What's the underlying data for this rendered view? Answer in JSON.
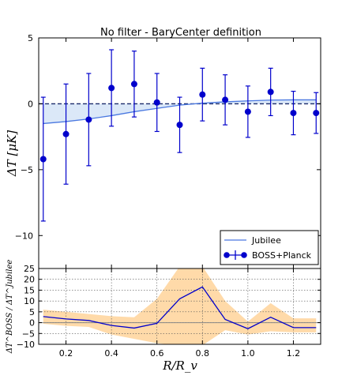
{
  "chart_data": [
    {
      "type": "line",
      "title": "No filter - BaryCenter definition",
      "ylabel": "ΔT [μK]",
      "xlabel": "",
      "xlim": [
        0.08,
        1.32
      ],
      "ylim": [
        -12.5,
        5
      ],
      "yticks": [
        5,
        0,
        -5,
        -10
      ],
      "grid": false,
      "legend": {
        "placement": "lower-right",
        "entries": [
          "Jubilee",
          "BOSS+Planck"
        ]
      },
      "series": [
        {
          "name": "Jubilee",
          "kind": "line",
          "color": "#4a78e0",
          "fill_color": "#dbe8f8",
          "x": [
            0.1,
            0.2,
            0.3,
            0.4,
            0.5,
            0.6,
            0.7,
            0.8,
            0.9,
            1.0,
            1.1,
            1.2,
            1.3
          ],
          "y": [
            -1.5,
            -1.35,
            -1.15,
            -0.9,
            -0.6,
            -0.35,
            -0.1,
            0.05,
            0.15,
            0.22,
            0.28,
            0.3,
            0.3
          ]
        },
        {
          "name": "BOSS+Planck",
          "kind": "errorbar",
          "color": "#0000cc",
          "x": [
            0.1,
            0.2,
            0.3,
            0.4,
            0.5,
            0.6,
            0.7,
            0.8,
            0.9,
            1.0,
            1.1,
            1.2,
            1.3
          ],
          "y": [
            -4.2,
            -2.3,
            -1.2,
            1.2,
            1.5,
            0.1,
            -1.6,
            0.7,
            0.3,
            -0.6,
            0.9,
            -0.7,
            -0.7
          ],
          "err": [
            4.7,
            3.8,
            3.5,
            2.9,
            2.5,
            2.2,
            2.1,
            2.0,
            1.9,
            1.95,
            1.8,
            1.65,
            1.55
          ]
        }
      ],
      "reference_line": {
        "y": 0,
        "style": "dashed",
        "color": "#1a2a6a"
      }
    },
    {
      "type": "line",
      "title": "",
      "ylabel": "ΔT^BOSS / ΔT^Jubilee",
      "xlabel": "R/R_v",
      "xlim": [
        0.08,
        1.32
      ],
      "ylim": [
        -10,
        25
      ],
      "yticks": [
        25,
        20,
        15,
        10,
        5,
        0,
        -5,
        -10
      ],
      "xticks": [
        0.2,
        0.4,
        0.6,
        0.8,
        1.0,
        1.2
      ],
      "xtick_labels": [
        "0.2",
        "0.4",
        "0.6",
        "0.8",
        "1.0",
        "1.2"
      ],
      "grid": true,
      "series": [
        {
          "name": "",
          "kind": "line",
          "color": "#0000cc",
          "x": [
            0.1,
            0.2,
            0.3,
            0.4,
            0.5,
            0.6,
            0.7,
            0.8,
            0.9,
            1.0,
            1.1,
            1.2,
            1.3
          ],
          "y": [
            2.8,
            1.7,
            1.0,
            -1.3,
            -2.5,
            -0.3,
            11.0,
            16.5,
            1.5,
            -2.8,
            2.5,
            -2.3,
            -2.3
          ]
        },
        {
          "name": "",
          "kind": "band",
          "color": "#ffd6a0",
          "x": [
            0.1,
            0.2,
            0.3,
            0.4,
            0.5,
            0.6,
            0.7,
            0.8,
            0.9,
            1.0,
            1.1,
            1.2,
            1.3
          ],
          "lower": [
            -0.5,
            -1.5,
            -2.0,
            -5.5,
            -7.5,
            -9.5,
            -10.5,
            -10.5,
            -3.5,
            -5.5,
            -4.0,
            -4.5,
            -4.5
          ],
          "upper": [
            6.0,
            5.0,
            4.0,
            3.0,
            2.5,
            11.0,
            26.0,
            26.0,
            10.0,
            0.5,
            9.0,
            2.0,
            2.0
          ]
        }
      ],
      "reference_line": {
        "y": 0,
        "style": "solid",
        "color": "#888888"
      }
    }
  ]
}
